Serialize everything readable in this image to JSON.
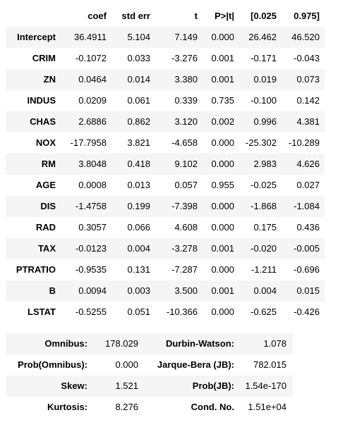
{
  "coef_table": {
    "headers": [
      "",
      "coef",
      "std err",
      "t",
      "P>|t|",
      "[0.025",
      "0.975]"
    ],
    "rows": [
      {
        "name": "Intercept",
        "coef": "36.4911",
        "std_err": "5.104",
        "t": "7.149",
        "p": "0.000",
        "ci_low": "26.462",
        "ci_high": "46.520"
      },
      {
        "name": "CRIM",
        "coef": "-0.1072",
        "std_err": "0.033",
        "t": "-3.276",
        "p": "0.001",
        "ci_low": "-0.171",
        "ci_high": "-0.043"
      },
      {
        "name": "ZN",
        "coef": "0.0464",
        "std_err": "0.014",
        "t": "3.380",
        "p": "0.001",
        "ci_low": "0.019",
        "ci_high": "0.073"
      },
      {
        "name": "INDUS",
        "coef": "0.0209",
        "std_err": "0.061",
        "t": "0.339",
        "p": "0.735",
        "ci_low": "-0.100",
        "ci_high": "0.142"
      },
      {
        "name": "CHAS",
        "coef": "2.6886",
        "std_err": "0.862",
        "t": "3.120",
        "p": "0.002",
        "ci_low": "0.996",
        "ci_high": "4.381"
      },
      {
        "name": "NOX",
        "coef": "-17.7958",
        "std_err": "3.821",
        "t": "-4.658",
        "p": "0.000",
        "ci_low": "-25.302",
        "ci_high": "-10.289"
      },
      {
        "name": "RM",
        "coef": "3.8048",
        "std_err": "0.418",
        "t": "9.102",
        "p": "0.000",
        "ci_low": "2.983",
        "ci_high": "4.626"
      },
      {
        "name": "AGE",
        "coef": "0.0008",
        "std_err": "0.013",
        "t": "0.057",
        "p": "0.955",
        "ci_low": "-0.025",
        "ci_high": "0.027"
      },
      {
        "name": "DIS",
        "coef": "-1.4758",
        "std_err": "0.199",
        "t": "-7.398",
        "p": "0.000",
        "ci_low": "-1.868",
        "ci_high": "-1.084"
      },
      {
        "name": "RAD",
        "coef": "0.3057",
        "std_err": "0.066",
        "t": "4.608",
        "p": "0.000",
        "ci_low": "0.175",
        "ci_high": "0.436"
      },
      {
        "name": "TAX",
        "coef": "-0.0123",
        "std_err": "0.004",
        "t": "-3.278",
        "p": "0.001",
        "ci_low": "-0.020",
        "ci_high": "-0.005"
      },
      {
        "name": "PTRATIO",
        "coef": "-0.9535",
        "std_err": "0.131",
        "t": "-7.287",
        "p": "0.000",
        "ci_low": "-1.211",
        "ci_high": "-0.696"
      },
      {
        "name": "B",
        "coef": "0.0094",
        "std_err": "0.003",
        "t": "3.500",
        "p": "0.001",
        "ci_low": "0.004",
        "ci_high": "0.015"
      },
      {
        "name": "LSTAT",
        "coef": "-0.5255",
        "std_err": "0.051",
        "t": "-10.366",
        "p": "0.000",
        "ci_low": "-0.625",
        "ci_high": "-0.426"
      }
    ]
  },
  "diagnostics_table": {
    "rows": [
      {
        "label1": "Omnibus:",
        "value1": "178.029",
        "label2": "Durbin-Watson:",
        "value2": "1.078"
      },
      {
        "label1": "Prob(Omnibus):",
        "value1": "0.000",
        "label2": "Jarque-Bera (JB):",
        "value2": "782.015"
      },
      {
        "label1": "Skew:",
        "value1": "1.521",
        "label2": "Prob(JB):",
        "value2": "1.54e-170"
      },
      {
        "label1": "Kurtosis:",
        "value1": "8.276",
        "label2": "Cond. No.",
        "value2": "1.51e+04"
      }
    ]
  },
  "colors": {
    "stripe": "#f5f5f5",
    "background": "#ffffff",
    "text": "#000000"
  }
}
